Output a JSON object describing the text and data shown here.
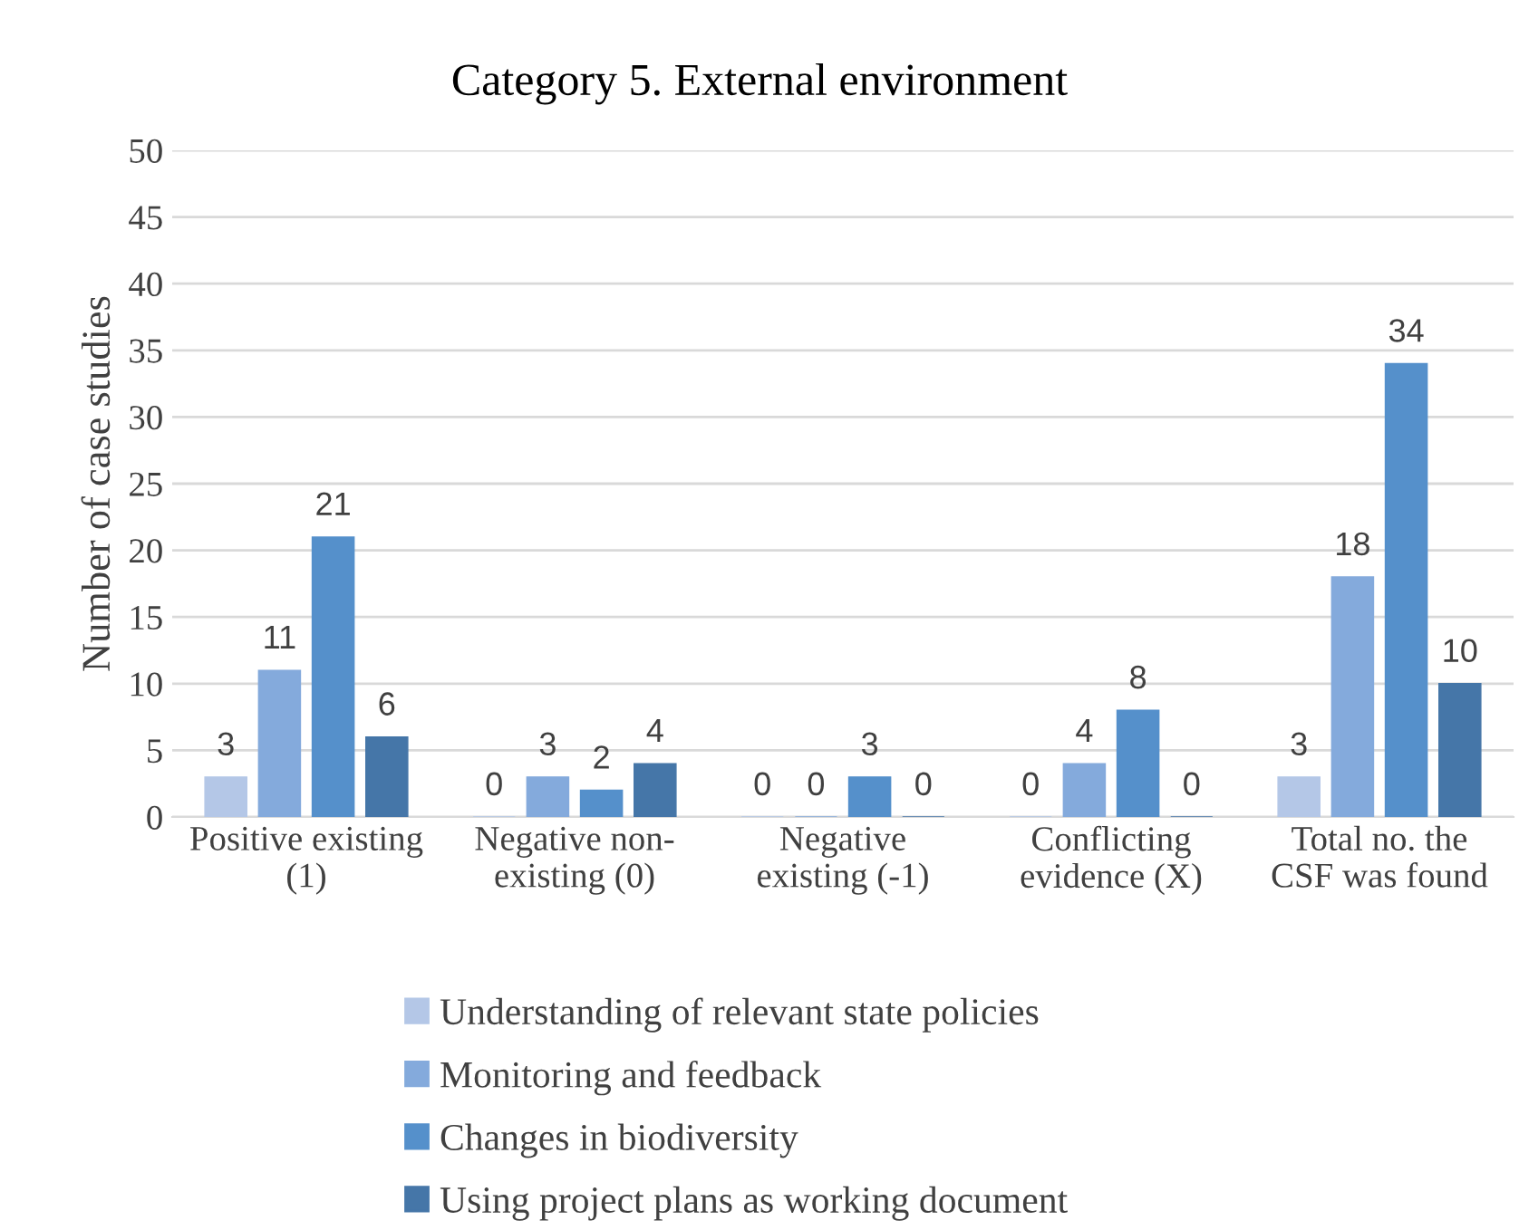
{
  "chart_data": {
    "type": "bar",
    "title": "Category 5. External environment",
    "ylabel": "Number of case studies",
    "categories": [
      "Positive existing\n(1)",
      "Negative non-\nexisting (0)",
      "Negative\nexisting (-1)",
      "Conflicting\nevidence (X)",
      "Total no. the\nCSF was found"
    ],
    "series": [
      {
        "name": "Understanding of relevant state policies",
        "color": "#b4c7e7",
        "values": [
          3,
          0,
          0,
          0,
          3
        ]
      },
      {
        "name": "Monitoring and feedback",
        "color": "#84aadc",
        "values": [
          11,
          3,
          0,
          4,
          18
        ]
      },
      {
        "name": "Changes in biodiversity",
        "color": "#5590cb",
        "values": [
          21,
          2,
          3,
          8,
          34
        ]
      },
      {
        "name": "Using project plans as working document",
        "color": "#4576a8",
        "values": [
          6,
          4,
          0,
          0,
          10
        ]
      }
    ],
    "ylim": [
      0,
      50
    ],
    "yticks": [
      0,
      5,
      10,
      15,
      20,
      25,
      30,
      35,
      40,
      45,
      50
    ],
    "grid": "y",
    "legend": "bottom",
    "data_labels": true
  }
}
